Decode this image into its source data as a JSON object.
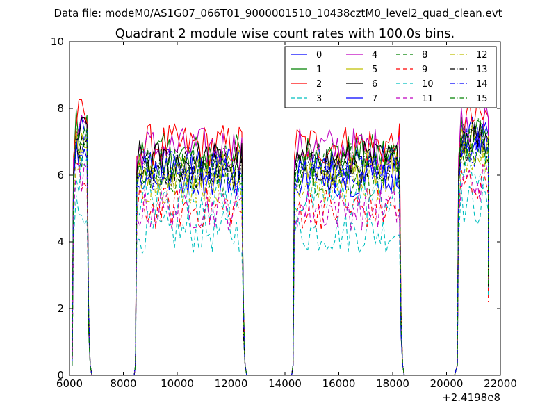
{
  "suptitle": "Data file: modeM0/AS1G07_066T01_9000001510_10438cztM0_level2_quad_clean.evt",
  "chart_data": {
    "type": "line",
    "title": "Quadrant 2 module wise count rates with 100.0s bins.",
    "xlabel": "",
    "ylabel": "",
    "x_offset_label": "+2.4198e8",
    "xlim": [
      6000,
      22000
    ],
    "ylim": [
      0,
      10
    ],
    "xticks": [
      6000,
      8000,
      10000,
      12000,
      14000,
      16000,
      18000,
      20000,
      22000
    ],
    "xtick_labels": [
      "6000",
      "8000",
      "10000",
      "12000",
      "14000",
      "16000",
      "18000",
      "20000",
      "22000"
    ],
    "yticks": [
      0,
      2,
      4,
      6,
      8,
      10
    ],
    "ytick_labels": [
      "0",
      "2",
      "4",
      "6",
      "8",
      "10"
    ],
    "bin_seconds": 100,
    "segments": [
      {
        "on_start": 6150,
        "on_end": 6650,
        "off_end": 8450
      },
      {
        "on_start": 8500,
        "on_end": 12400,
        "off_end": 14300
      },
      {
        "on_start": 14350,
        "on_end": 18250,
        "off_end": 20350
      },
      {
        "on_start": 20450,
        "on_end": 21550,
        "off_end": 21550
      }
    ],
    "legend_position": "upper right, 4 columns",
    "series": [
      {
        "name": "0",
        "color": "#0000ff",
        "dash": "solid",
        "level": 6.3
      },
      {
        "name": "1",
        "color": "#008000",
        "dash": "solid",
        "level": 6.6
      },
      {
        "name": "2",
        "color": "#ff0000",
        "dash": "solid",
        "level": 6.9
      },
      {
        "name": "3",
        "color": "#00bfbf",
        "dash": "dashed",
        "level": 4.3
      },
      {
        "name": "4",
        "color": "#bf00bf",
        "dash": "solid",
        "level": 6.8
      },
      {
        "name": "5",
        "color": "#bfbf00",
        "dash": "solid",
        "level": 6.1
      },
      {
        "name": "6",
        "color": "#000000",
        "dash": "solid",
        "level": 6.4
      },
      {
        "name": "7",
        "color": "#0000ff",
        "dash": "solid",
        "level": 6.0
      },
      {
        "name": "8",
        "color": "#008000",
        "dash": "dashed",
        "level": 6.0
      },
      {
        "name": "9",
        "color": "#ff0000",
        "dash": "dashed",
        "level": 5.0
      },
      {
        "name": "10",
        "color": "#00bfbf",
        "dash": "dashed",
        "level": 5.3
      },
      {
        "name": "11",
        "color": "#bf00bf",
        "dash": "dashed",
        "level": 5.0
      },
      {
        "name": "12",
        "color": "#bfbf00",
        "dash": "dashdot",
        "level": 5.8
      },
      {
        "name": "13",
        "color": "#000000",
        "dash": "dashdot",
        "level": 6.2
      },
      {
        "name": "14",
        "color": "#0000ff",
        "dash": "dashdot",
        "level": 6.1
      },
      {
        "name": "15",
        "color": "#008000",
        "dash": "dashdot",
        "level": 6.3
      }
    ]
  }
}
